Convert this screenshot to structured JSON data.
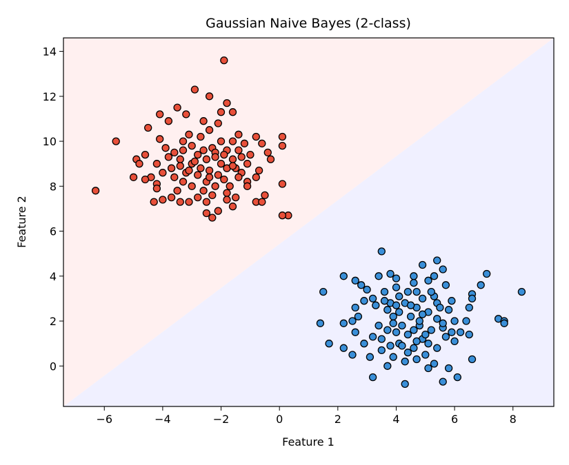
{
  "chart_data": {
    "type": "scatter",
    "title": "Gaussian Naive Bayes (2-class)",
    "xlabel": "Feature 1",
    "ylabel": "Feature 2",
    "xlim": [
      -7.4,
      9.4
    ],
    "ylim": [
      -1.8,
      14.6
    ],
    "xticks": [
      -6,
      -4,
      -2,
      0,
      2,
      4,
      6,
      8
    ],
    "yticks": [
      0,
      2,
      4,
      6,
      8,
      10,
      12,
      14
    ],
    "grid": false,
    "legend": "none",
    "decision_boundary": [
      [
        -7.4,
        -1.8
      ],
      [
        9.4,
        14.6
      ]
    ],
    "region_colors": {
      "upper_left": "#fff0f0",
      "lower_right": "#f0f0ff"
    },
    "series": [
      {
        "color": "#e8503a",
        "points": [
          [
            -1.9,
            13.6
          ],
          [
            -2.9,
            12.3
          ],
          [
            -2.4,
            12.0
          ],
          [
            -3.5,
            11.5
          ],
          [
            -1.6,
            11.3
          ],
          [
            -4.1,
            11.2
          ],
          [
            -2.0,
            11.3
          ],
          [
            -3.2,
            11.2
          ],
          [
            -1.8,
            11.7
          ],
          [
            -3.8,
            10.9
          ],
          [
            -2.6,
            10.9
          ],
          [
            -2.1,
            10.8
          ],
          [
            -4.5,
            10.6
          ],
          [
            -1.4,
            10.3
          ],
          [
            -3.1,
            10.3
          ],
          [
            -2.4,
            10.5
          ],
          [
            -0.8,
            10.2
          ],
          [
            0.1,
            10.2
          ],
          [
            -5.6,
            10.0
          ],
          [
            -4.1,
            10.1
          ],
          [
            -3.3,
            10.0
          ],
          [
            -2.7,
            10.2
          ],
          [
            -2.0,
            10.0
          ],
          [
            -1.6,
            10.0
          ],
          [
            -1.2,
            9.9
          ],
          [
            -0.6,
            9.9
          ],
          [
            -3.9,
            9.7
          ],
          [
            -3.0,
            9.8
          ],
          [
            -2.3,
            9.7
          ],
          [
            -1.8,
            9.6
          ],
          [
            -1.4,
            9.6
          ],
          [
            -0.4,
            9.5
          ],
          [
            0.1,
            9.8
          ],
          [
            -4.6,
            9.4
          ],
          [
            -3.6,
            9.5
          ],
          [
            -2.8,
            9.4
          ],
          [
            -2.2,
            9.5
          ],
          [
            -1.0,
            9.4
          ],
          [
            -4.9,
            9.2
          ],
          [
            -3.4,
            9.2
          ],
          [
            -2.5,
            9.2
          ],
          [
            -1.6,
            9.2
          ],
          [
            -0.3,
            9.2
          ],
          [
            -4.2,
            9.0
          ],
          [
            -3.0,
            9.0
          ],
          [
            -2.0,
            9.0
          ],
          [
            -1.1,
            9.0
          ],
          [
            -4.8,
            9.0
          ],
          [
            -3.7,
            8.8
          ],
          [
            -2.7,
            8.8
          ],
          [
            -1.8,
            8.8
          ],
          [
            -1.5,
            8.8
          ],
          [
            -4.0,
            8.6
          ],
          [
            -3.2,
            8.6
          ],
          [
            -2.4,
            8.7
          ],
          [
            -1.3,
            8.6
          ],
          [
            -0.7,
            8.7
          ],
          [
            -4.4,
            8.4
          ],
          [
            -3.6,
            8.4
          ],
          [
            -2.8,
            8.5
          ],
          [
            -2.1,
            8.5
          ],
          [
            -1.4,
            8.4
          ],
          [
            -0.8,
            8.4
          ],
          [
            -5.0,
            8.4
          ],
          [
            -4.6,
            8.3
          ],
          [
            -3.3,
            8.2
          ],
          [
            -2.5,
            8.2
          ],
          [
            -1.9,
            8.3
          ],
          [
            -1.1,
            8.2
          ],
          [
            -4.2,
            8.1
          ],
          [
            -3.0,
            8.0
          ],
          [
            -2.2,
            8.0
          ],
          [
            -1.7,
            8.0
          ],
          [
            -1.1,
            8.0
          ],
          [
            0.1,
            8.1
          ],
          [
            -6.3,
            7.8
          ],
          [
            -4.2,
            7.9
          ],
          [
            -3.5,
            7.8
          ],
          [
            -2.6,
            7.8
          ],
          [
            -1.8,
            7.7
          ],
          [
            -0.5,
            7.6
          ],
          [
            -3.7,
            7.5
          ],
          [
            -2.8,
            7.5
          ],
          [
            -2.3,
            7.6
          ],
          [
            -1.5,
            7.5
          ],
          [
            -4.0,
            7.4
          ],
          [
            -3.4,
            7.3
          ],
          [
            -2.5,
            7.3
          ],
          [
            -1.8,
            7.4
          ],
          [
            -0.8,
            7.3
          ],
          [
            -4.3,
            7.3
          ],
          [
            -3.1,
            7.3
          ],
          [
            -1.6,
            7.1
          ],
          [
            -2.1,
            6.9
          ],
          [
            -2.3,
            6.6
          ],
          [
            -2.5,
            6.8
          ],
          [
            0.3,
            6.7
          ],
          [
            0.1,
            6.7
          ],
          [
            -0.6,
            7.3
          ],
          [
            -3.3,
            9.6
          ],
          [
            -2.9,
            9.1
          ],
          [
            -2.6,
            9.6
          ],
          [
            -2.2,
            9.3
          ],
          [
            -1.9,
            9.4
          ],
          [
            -3.1,
            8.7
          ],
          [
            -2.4,
            8.4
          ],
          [
            -1.6,
            8.9
          ],
          [
            -1.3,
            9.3
          ],
          [
            -3.8,
            9.3
          ],
          [
            -3.4,
            8.9
          ]
        ]
      },
      {
        "color": "#3a8fd8",
        "points": [
          [
            3.5,
            5.1
          ],
          [
            5.4,
            4.7
          ],
          [
            4.9,
            4.5
          ],
          [
            5.6,
            4.3
          ],
          [
            3.8,
            4.1
          ],
          [
            5.3,
            4.0
          ],
          [
            4.6,
            4.0
          ],
          [
            7.1,
            4.1
          ],
          [
            3.4,
            4.0
          ],
          [
            2.2,
            4.0
          ],
          [
            4.0,
            3.9
          ],
          [
            2.6,
            3.8
          ],
          [
            5.1,
            3.8
          ],
          [
            4.6,
            3.7
          ],
          [
            2.8,
            3.6
          ],
          [
            6.9,
            3.6
          ],
          [
            5.7,
            3.6
          ],
          [
            4.0,
            3.5
          ],
          [
            3.0,
            3.4
          ],
          [
            4.4,
            3.3
          ],
          [
            3.6,
            3.3
          ],
          [
            1.5,
            3.3
          ],
          [
            8.3,
            3.3
          ],
          [
            4.7,
            3.3
          ],
          [
            5.3,
            3.1
          ],
          [
            4.1,
            3.1
          ],
          [
            6.6,
            3.2
          ],
          [
            3.2,
            3.0
          ],
          [
            4.9,
            3.0
          ],
          [
            6.6,
            3.0
          ],
          [
            5.9,
            2.9
          ],
          [
            2.9,
            2.9
          ],
          [
            4.3,
            2.8
          ],
          [
            3.8,
            2.8
          ],
          [
            5.4,
            2.8
          ],
          [
            3.3,
            2.7
          ],
          [
            2.6,
            2.6
          ],
          [
            4.7,
            2.6
          ],
          [
            5.8,
            2.5
          ],
          [
            6.5,
            2.6
          ],
          [
            3.7,
            2.5
          ],
          [
            4.1,
            2.4
          ],
          [
            5.1,
            2.4
          ],
          [
            4.9,
            2.3
          ],
          [
            2.7,
            2.2
          ],
          [
            3.9,
            2.2
          ],
          [
            4.5,
            2.2
          ],
          [
            5.4,
            2.1
          ],
          [
            6.4,
            2.0
          ],
          [
            7.5,
            2.1
          ],
          [
            7.7,
            2.0
          ],
          [
            6.0,
            2.0
          ],
          [
            2.5,
            2.0
          ],
          [
            1.4,
            1.9
          ],
          [
            2.2,
            1.9
          ],
          [
            3.4,
            1.8
          ],
          [
            4.2,
            1.8
          ],
          [
            4.8,
            1.8
          ],
          [
            5.6,
            1.7
          ],
          [
            7.7,
            1.9
          ],
          [
            3.7,
            1.6
          ],
          [
            4.6,
            1.6
          ],
          [
            5.2,
            1.6
          ],
          [
            2.6,
            1.5
          ],
          [
            4.0,
            1.5
          ],
          [
            5.9,
            1.5
          ],
          [
            6.5,
            1.4
          ],
          [
            4.4,
            1.4
          ],
          [
            5.7,
            1.3
          ],
          [
            3.2,
            1.3
          ],
          [
            4.9,
            1.2
          ],
          [
            6.0,
            1.1
          ],
          [
            1.7,
            1.0
          ],
          [
            2.9,
            1.0
          ],
          [
            4.1,
            1.0
          ],
          [
            5.1,
            1.0
          ],
          [
            3.8,
            0.9
          ],
          [
            4.6,
            0.8
          ],
          [
            5.4,
            0.8
          ],
          [
            2.2,
            0.8
          ],
          [
            3.5,
            0.7
          ],
          [
            4.4,
            0.6
          ],
          [
            5.0,
            0.5
          ],
          [
            6.6,
            0.3
          ],
          [
            2.5,
            0.5
          ],
          [
            3.1,
            0.4
          ],
          [
            3.9,
            0.4
          ],
          [
            4.7,
            0.3
          ],
          [
            5.3,
            0.1
          ],
          [
            4.3,
            0.2
          ],
          [
            3.7,
            0.0
          ],
          [
            5.8,
            -0.1
          ],
          [
            5.1,
            -0.1
          ],
          [
            3.2,
            -0.5
          ],
          [
            6.1,
            -0.5
          ],
          [
            5.6,
            -0.7
          ],
          [
            4.3,
            -0.8
          ],
          [
            3.6,
            2.9
          ],
          [
            4.8,
            2.0
          ],
          [
            5.0,
            1.4
          ],
          [
            4.5,
            2.7
          ],
          [
            3.9,
            1.9
          ],
          [
            5.5,
            2.6
          ],
          [
            4.2,
            0.9
          ],
          [
            4.7,
            1.1
          ],
          [
            5.2,
            3.3
          ],
          [
            3.5,
            1.2
          ],
          [
            6.2,
            1.5
          ],
          [
            4.0,
            2.7
          ],
          [
            5.6,
            1.9
          ]
        ]
      }
    ]
  }
}
